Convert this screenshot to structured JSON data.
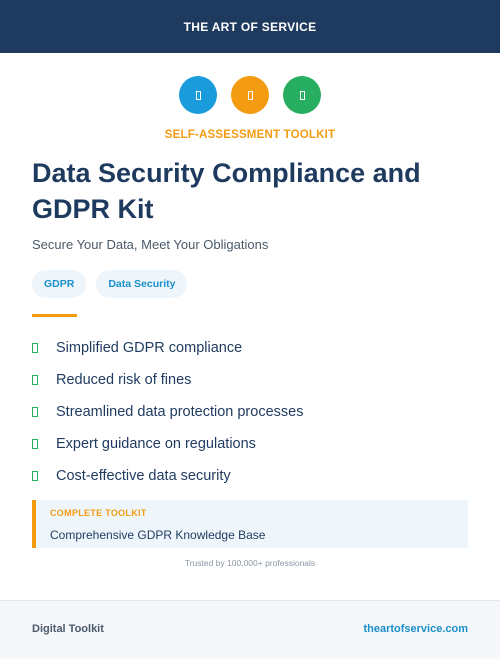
{
  "header": {
    "brand": "THE ART OF SERVICE"
  },
  "icons": [
    {
      "name": "shield-icon",
      "color": "#1a9bdb"
    },
    {
      "name": "clipboard-icon",
      "color": "#f39c12"
    },
    {
      "name": "lock-icon",
      "color": "#27ae60"
    }
  ],
  "hero": {
    "kicker": "SELF-ASSESSMENT TOOLKIT",
    "title": "Data Security Compliance and GDPR Kit",
    "subtitle": "Secure Your Data, Meet Your Obligations"
  },
  "tags": [
    "GDPR",
    "Data Security"
  ],
  "benefits": [
    "Simplified GDPR compliance",
    "Reduced risk of fines",
    "Streamlined data protection processes",
    "Expert guidance on regulations",
    "Cost-effective data security"
  ],
  "callout": {
    "label": "COMPLETE TOOLKIT",
    "text": "Comprehensive GDPR Knowledge Base"
  },
  "trust": "Trusted by 100,000+ professionals",
  "footer": {
    "left": "Digital Toolkit",
    "right": "theartofservice.com"
  },
  "colors": {
    "navy": "#1e3a5f",
    "accent_orange": "#f39c12",
    "accent_blue": "#1a8fc9",
    "check_green": "#27ae60"
  }
}
